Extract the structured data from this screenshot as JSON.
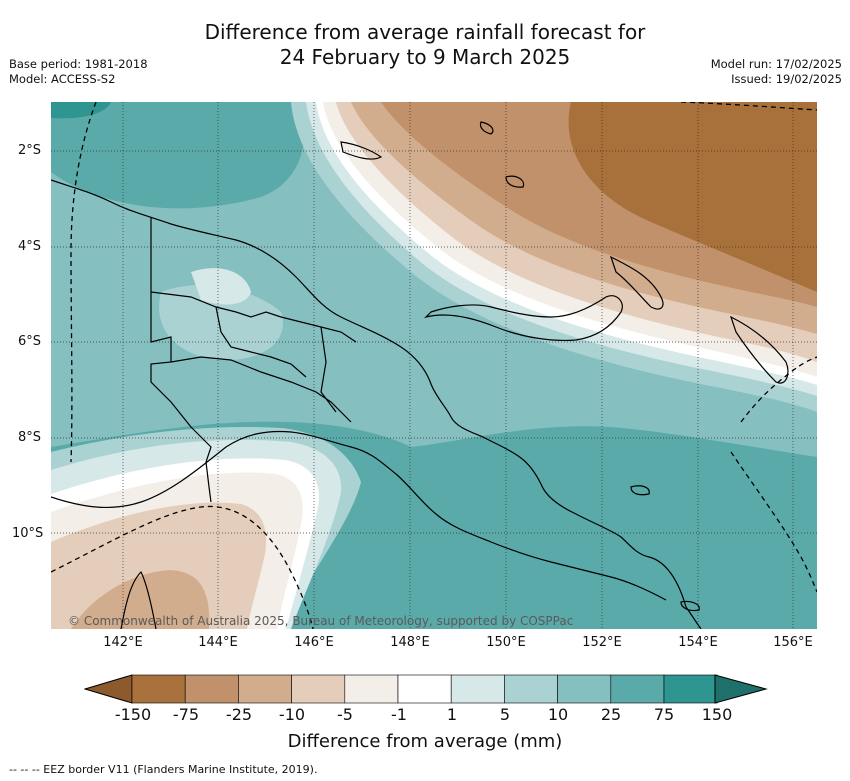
{
  "header": {
    "title_line1": "Difference from average rainfall forecast for",
    "title_line2": "24 February to 9 March 2025",
    "base_period": "Base period: 1981-2018",
    "model": "Model: ACCESS-S2",
    "model_run": "Model run: 17/02/2025",
    "issued": "Issued: 19/02/2025"
  },
  "map": {
    "lat_labels": [
      "2°S",
      "4°S",
      "6°S",
      "8°S",
      "10°S"
    ],
    "lon_labels": [
      "142°E",
      "144°E",
      "146°E",
      "148°E",
      "150°E",
      "152°E",
      "154°E",
      "156°E"
    ],
    "copyright": "© Commonwealth of Australia 2025, Bureau of Meteorology, supported by COSPPac"
  },
  "colorbar": {
    "ticks": [
      "-150",
      "-75",
      "-25",
      "-10",
      "-5",
      "-1",
      "1",
      "5",
      "10",
      "25",
      "75",
      "150"
    ],
    "colors": [
      "#a8703a",
      "#c0916a",
      "#d2ad8d",
      "#e4cebb",
      "#f3eee7",
      "#ffffff",
      "#d6e8e8",
      "#abd2d2",
      "#85bfbf",
      "#5aaaa9",
      "#2f9590"
    ],
    "under_color": "#8c5a2c",
    "over_color": "#1f6f6a",
    "label": "Difference from average (mm)"
  },
  "footer": {
    "legend_text": "-- -- -- EEZ border V11 (Flanders Marine Institute, 2019)."
  }
}
